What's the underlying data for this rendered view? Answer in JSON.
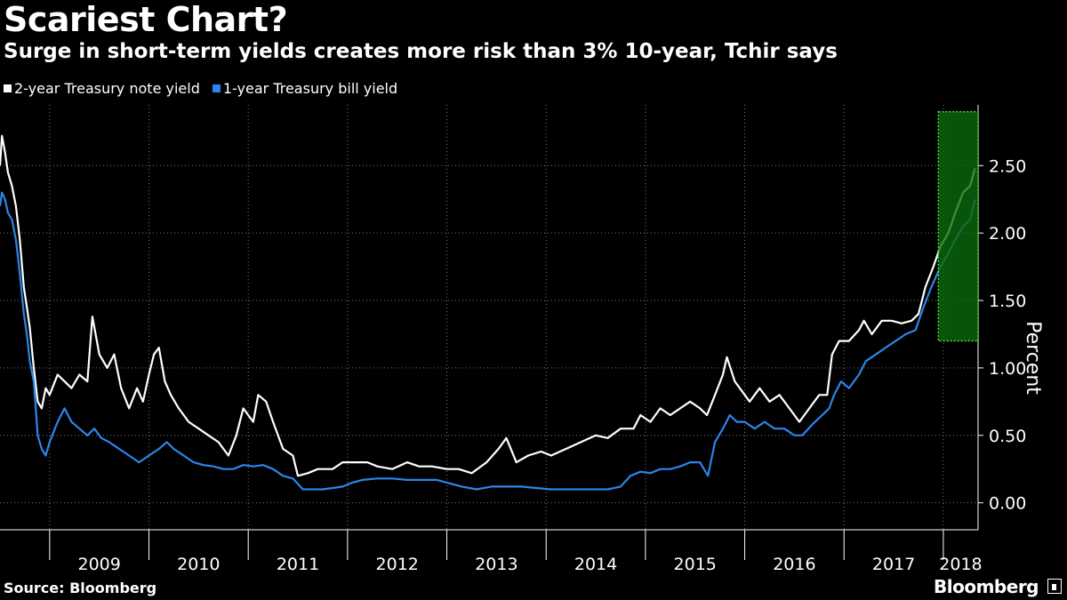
{
  "header": {
    "title": "Scariest Chart?",
    "subtitle": "Surge in short-term yields creates more risk than 3% 10-year, Tchir says"
  },
  "footer": {
    "source": "Source: Bloomberg",
    "brand": "Bloomberg"
  },
  "colors": {
    "background": "#000000",
    "series_2y": "#ffffff",
    "series_1y": "#2b86e8",
    "highlight_fill": "#0a6b0a",
    "highlight_border": "#4fd34f",
    "grid": "#777777"
  },
  "chart_data": {
    "type": "line",
    "title": "Scariest Chart?",
    "subtitle": "Surge in short-term yields creates more risk than 3% 10-year, Tchir says",
    "xlabel": "",
    "ylabel": "Percent",
    "xlim": [
      2008.5,
      2018.35
    ],
    "ylim": [
      -0.2,
      2.95
    ],
    "yticks": [
      0.0,
      0.5,
      1.0,
      1.5,
      2.0,
      2.5
    ],
    "ytick_labels": [
      "0.00",
      "0.50",
      "1.00",
      "1.50",
      "2.00",
      "2.50"
    ],
    "x_category_labels": [
      "2009",
      "2010",
      "2011",
      "2012",
      "2013",
      "2014",
      "2015",
      "2016",
      "2017",
      "2018"
    ],
    "grid": "vertical dotted lines at year boundaries, horizontal dotted lines at y ticks",
    "legend_position": "top-left",
    "highlight_region": {
      "x": [
        2017.95,
        2018.35
      ],
      "y": [
        1.2,
        2.9
      ],
      "label": ""
    },
    "series": [
      {
        "name": "2-year Treasury note yield",
        "color": "#ffffff",
        "points": [
          [
            2008.5,
            2.5
          ],
          [
            2008.52,
            2.72
          ],
          [
            2008.55,
            2.6
          ],
          [
            2008.58,
            2.45
          ],
          [
            2008.62,
            2.35
          ],
          [
            2008.66,
            2.2
          ],
          [
            2008.7,
            1.95
          ],
          [
            2008.74,
            1.6
          ],
          [
            2008.77,
            1.45
          ],
          [
            2008.8,
            1.3
          ],
          [
            2008.84,
            1.0
          ],
          [
            2008.88,
            0.75
          ],
          [
            2008.92,
            0.7
          ],
          [
            2008.96,
            0.85
          ],
          [
            2009.0,
            0.8
          ],
          [
            2009.08,
            0.95
          ],
          [
            2009.15,
            0.9
          ],
          [
            2009.22,
            0.85
          ],
          [
            2009.3,
            0.95
          ],
          [
            2009.38,
            0.9
          ],
          [
            2009.43,
            1.38
          ],
          [
            2009.5,
            1.1
          ],
          [
            2009.58,
            1.0
          ],
          [
            2009.65,
            1.1
          ],
          [
            2009.72,
            0.85
          ],
          [
            2009.8,
            0.7
          ],
          [
            2009.88,
            0.85
          ],
          [
            2009.94,
            0.75
          ],
          [
            2010.0,
            0.95
          ],
          [
            2010.05,
            1.1
          ],
          [
            2010.1,
            1.15
          ],
          [
            2010.16,
            0.9
          ],
          [
            2010.22,
            0.8
          ],
          [
            2010.3,
            0.7
          ],
          [
            2010.4,
            0.6
          ],
          [
            2010.5,
            0.55
          ],
          [
            2010.6,
            0.5
          ],
          [
            2010.7,
            0.45
          ],
          [
            2010.8,
            0.35
          ],
          [
            2010.88,
            0.5
          ],
          [
            2010.95,
            0.7
          ],
          [
            2011.05,
            0.6
          ],
          [
            2011.1,
            0.8
          ],
          [
            2011.18,
            0.75
          ],
          [
            2011.25,
            0.6
          ],
          [
            2011.35,
            0.4
          ],
          [
            2011.45,
            0.35
          ],
          [
            2011.5,
            0.2
          ],
          [
            2011.6,
            0.22
          ],
          [
            2011.7,
            0.25
          ],
          [
            2011.85,
            0.25
          ],
          [
            2011.95,
            0.3
          ],
          [
            2012.1,
            0.3
          ],
          [
            2012.2,
            0.3
          ],
          [
            2012.3,
            0.27
          ],
          [
            2012.45,
            0.25
          ],
          [
            2012.6,
            0.3
          ],
          [
            2012.72,
            0.27
          ],
          [
            2012.85,
            0.27
          ],
          [
            2013.0,
            0.25
          ],
          [
            2013.12,
            0.25
          ],
          [
            2013.25,
            0.22
          ],
          [
            2013.4,
            0.3
          ],
          [
            2013.52,
            0.4
          ],
          [
            2013.6,
            0.48
          ],
          [
            2013.7,
            0.3
          ],
          [
            2013.82,
            0.35
          ],
          [
            2013.95,
            0.38
          ],
          [
            2014.05,
            0.35
          ],
          [
            2014.2,
            0.4
          ],
          [
            2014.35,
            0.45
          ],
          [
            2014.5,
            0.5
          ],
          [
            2014.62,
            0.48
          ],
          [
            2014.75,
            0.55
          ],
          [
            2014.88,
            0.55
          ],
          [
            2014.95,
            0.65
          ],
          [
            2015.05,
            0.6
          ],
          [
            2015.15,
            0.7
          ],
          [
            2015.25,
            0.65
          ],
          [
            2015.35,
            0.7
          ],
          [
            2015.45,
            0.75
          ],
          [
            2015.55,
            0.7
          ],
          [
            2015.62,
            0.65
          ],
          [
            2015.7,
            0.8
          ],
          [
            2015.78,
            0.95
          ],
          [
            2015.82,
            1.08
          ],
          [
            2015.9,
            0.9
          ],
          [
            2015.95,
            0.85
          ],
          [
            2016.05,
            0.75
          ],
          [
            2016.15,
            0.85
          ],
          [
            2016.25,
            0.75
          ],
          [
            2016.35,
            0.8
          ],
          [
            2016.45,
            0.7
          ],
          [
            2016.55,
            0.6
          ],
          [
            2016.65,
            0.7
          ],
          [
            2016.75,
            0.8
          ],
          [
            2016.83,
            0.8
          ],
          [
            2016.88,
            1.1
          ],
          [
            2016.95,
            1.2
          ],
          [
            2017.05,
            1.2
          ],
          [
            2017.15,
            1.28
          ],
          [
            2017.2,
            1.35
          ],
          [
            2017.28,
            1.25
          ],
          [
            2017.38,
            1.35
          ],
          [
            2017.48,
            1.35
          ],
          [
            2017.58,
            1.33
          ],
          [
            2017.68,
            1.35
          ],
          [
            2017.75,
            1.4
          ],
          [
            2017.82,
            1.6
          ],
          [
            2017.9,
            1.75
          ],
          [
            2017.97,
            1.9
          ],
          [
            2018.05,
            2.0
          ],
          [
            2018.12,
            2.15
          ],
          [
            2018.2,
            2.3
          ],
          [
            2018.27,
            2.35
          ],
          [
            2018.32,
            2.48
          ]
        ]
      },
      {
        "name": "1-year Treasury bill yield",
        "color": "#2b86e8",
        "points": [
          [
            2008.5,
            2.2
          ],
          [
            2008.52,
            2.3
          ],
          [
            2008.55,
            2.25
          ],
          [
            2008.58,
            2.15
          ],
          [
            2008.62,
            2.1
          ],
          [
            2008.66,
            1.95
          ],
          [
            2008.7,
            1.7
          ],
          [
            2008.74,
            1.4
          ],
          [
            2008.77,
            1.25
          ],
          [
            2008.8,
            1.05
          ],
          [
            2008.84,
            0.9
          ],
          [
            2008.88,
            0.5
          ],
          [
            2008.92,
            0.4
          ],
          [
            2008.96,
            0.35
          ],
          [
            2009.0,
            0.45
          ],
          [
            2009.08,
            0.6
          ],
          [
            2009.15,
            0.7
          ],
          [
            2009.22,
            0.6
          ],
          [
            2009.3,
            0.55
          ],
          [
            2009.38,
            0.5
          ],
          [
            2009.45,
            0.55
          ],
          [
            2009.52,
            0.48
          ],
          [
            2009.6,
            0.45
          ],
          [
            2009.7,
            0.4
          ],
          [
            2009.8,
            0.35
          ],
          [
            2009.9,
            0.3
          ],
          [
            2010.0,
            0.35
          ],
          [
            2010.1,
            0.4
          ],
          [
            2010.18,
            0.45
          ],
          [
            2010.25,
            0.4
          ],
          [
            2010.35,
            0.35
          ],
          [
            2010.45,
            0.3
          ],
          [
            2010.55,
            0.28
          ],
          [
            2010.65,
            0.27
          ],
          [
            2010.75,
            0.25
          ],
          [
            2010.85,
            0.25
          ],
          [
            2010.95,
            0.28
          ],
          [
            2011.05,
            0.27
          ],
          [
            2011.15,
            0.28
          ],
          [
            2011.25,
            0.25
          ],
          [
            2011.35,
            0.2
          ],
          [
            2011.45,
            0.18
          ],
          [
            2011.55,
            0.1
          ],
          [
            2011.65,
            0.1
          ],
          [
            2011.75,
            0.1
          ],
          [
            2011.85,
            0.11
          ],
          [
            2011.95,
            0.12
          ],
          [
            2012.05,
            0.15
          ],
          [
            2012.15,
            0.17
          ],
          [
            2012.3,
            0.18
          ],
          [
            2012.45,
            0.18
          ],
          [
            2012.6,
            0.17
          ],
          [
            2012.75,
            0.17
          ],
          [
            2012.9,
            0.17
          ],
          [
            2013.0,
            0.15
          ],
          [
            2013.15,
            0.12
          ],
          [
            2013.3,
            0.1
          ],
          [
            2013.45,
            0.12
          ],
          [
            2013.6,
            0.12
          ],
          [
            2013.75,
            0.12
          ],
          [
            2013.9,
            0.11
          ],
          [
            2014.05,
            0.1
          ],
          [
            2014.2,
            0.1
          ],
          [
            2014.35,
            0.1
          ],
          [
            2014.5,
            0.1
          ],
          [
            2014.62,
            0.1
          ],
          [
            2014.75,
            0.12
          ],
          [
            2014.85,
            0.2
          ],
          [
            2014.95,
            0.23
          ],
          [
            2015.05,
            0.22
          ],
          [
            2015.15,
            0.25
          ],
          [
            2015.25,
            0.25
          ],
          [
            2015.35,
            0.27
          ],
          [
            2015.45,
            0.3
          ],
          [
            2015.55,
            0.3
          ],
          [
            2015.63,
            0.2
          ],
          [
            2015.7,
            0.45
          ],
          [
            2015.78,
            0.55
          ],
          [
            2015.85,
            0.65
          ],
          [
            2015.92,
            0.6
          ],
          [
            2016.0,
            0.6
          ],
          [
            2016.1,
            0.55
          ],
          [
            2016.2,
            0.6
          ],
          [
            2016.3,
            0.55
          ],
          [
            2016.4,
            0.55
          ],
          [
            2016.5,
            0.5
          ],
          [
            2016.58,
            0.5
          ],
          [
            2016.68,
            0.58
          ],
          [
            2016.78,
            0.65
          ],
          [
            2016.85,
            0.7
          ],
          [
            2016.9,
            0.8
          ],
          [
            2016.97,
            0.9
          ],
          [
            2017.05,
            0.85
          ],
          [
            2017.15,
            0.95
          ],
          [
            2017.22,
            1.05
          ],
          [
            2017.32,
            1.1
          ],
          [
            2017.42,
            1.15
          ],
          [
            2017.52,
            1.2
          ],
          [
            2017.62,
            1.25
          ],
          [
            2017.72,
            1.28
          ],
          [
            2017.8,
            1.45
          ],
          [
            2017.88,
            1.6
          ],
          [
            2017.97,
            1.75
          ],
          [
            2018.05,
            1.85
          ],
          [
            2018.12,
            1.95
          ],
          [
            2018.2,
            2.05
          ],
          [
            2018.27,
            2.1
          ],
          [
            2018.32,
            2.25
          ]
        ]
      }
    ]
  }
}
